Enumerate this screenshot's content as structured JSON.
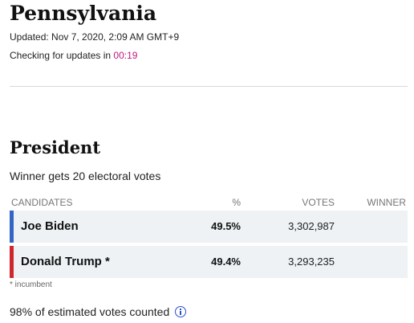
{
  "header": {
    "state": "Pennsylvania",
    "updated": "Updated: Nov 7, 2020, 2:09 AM GMT+9",
    "checking_prefix": "Checking for updates in ",
    "countdown": "00:19"
  },
  "race": {
    "title": "President",
    "subtitle": "Winner gets 20 electoral votes"
  },
  "table": {
    "columns": {
      "candidates": "CANDIDATES",
      "percent": "%",
      "votes": "VOTES",
      "winner": "WINNER"
    },
    "rows": [
      {
        "name": "Joe Biden",
        "incumbent_mark": "",
        "percent": "49.5%",
        "votes": "3,302,987",
        "winner": "",
        "party_color": "#3465c6"
      },
      {
        "name": "Donald Trump",
        "incumbent_mark": " *",
        "percent": "49.4%",
        "votes": "3,293,235",
        "winner": "",
        "party_color": "#d0272e"
      }
    ]
  },
  "footnote": "* incumbent",
  "votes_counted": "98% of estimated votes counted",
  "icons": {
    "info": "info-circle-icon"
  }
}
